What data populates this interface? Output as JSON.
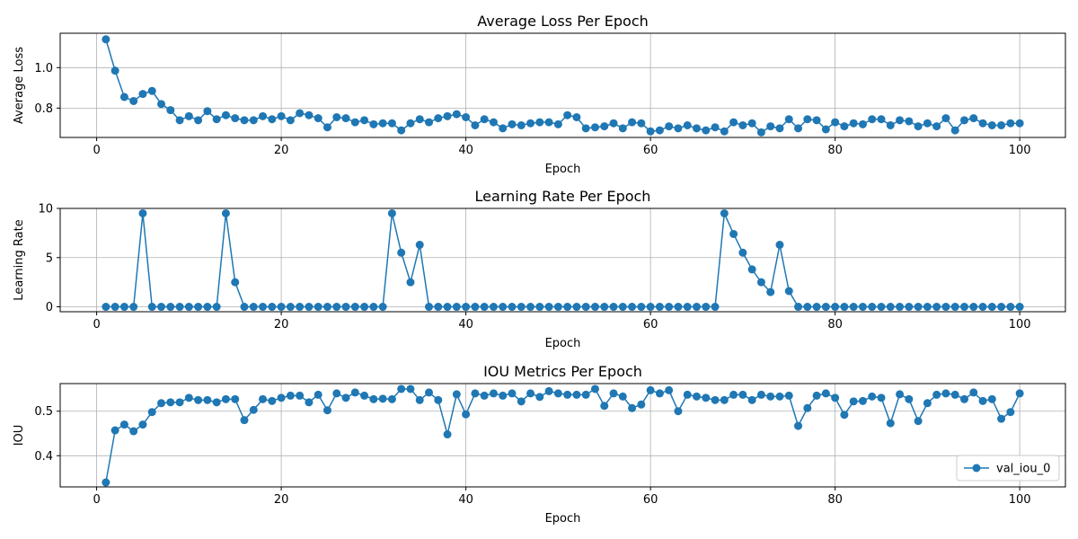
{
  "chart_data": [
    {
      "type": "line",
      "title": "Average Loss Per Epoch",
      "xlabel": "Epoch",
      "ylabel": "Average Loss",
      "xlim": [
        -3.95,
        104.95
      ],
      "ylim": [
        0.655,
        1.17
      ],
      "xticks": [
        0,
        20,
        40,
        60,
        80,
        100
      ],
      "yticks": [
        0.8,
        1.0
      ],
      "ytick_labels": [
        "0.8",
        "1.0"
      ],
      "grid": true,
      "color": "#1f77b4",
      "series": [
        {
          "x": [
            1,
            2,
            3,
            4,
            5,
            6,
            7,
            8,
            9,
            10,
            11,
            12,
            13,
            14,
            15,
            16,
            17,
            18,
            19,
            20,
            21,
            22,
            23,
            24,
            25,
            26,
            27,
            28,
            29,
            30,
            31,
            32,
            33,
            34,
            35,
            36,
            37,
            38,
            39,
            40,
            41,
            42,
            43,
            44,
            45,
            46,
            47,
            48,
            49,
            50,
            51,
            52,
            53,
            54,
            55,
            56,
            57,
            58,
            59,
            60,
            61,
            62,
            63,
            64,
            65,
            66,
            67,
            68,
            69,
            70,
            71,
            72,
            73,
            74,
            75,
            76,
            77,
            78,
            79,
            80,
            81,
            82,
            83,
            84,
            85,
            86,
            87,
            88,
            89,
            90,
            91,
            92,
            93,
            94,
            95,
            96,
            97,
            98,
            99,
            100
          ],
          "values": [
            1.14,
            0.985,
            0.855,
            0.835,
            0.87,
            0.885,
            0.82,
            0.79,
            0.74,
            0.76,
            0.74,
            0.785,
            0.745,
            0.765,
            0.75,
            0.74,
            0.74,
            0.76,
            0.745,
            0.76,
            0.74,
            0.775,
            0.765,
            0.75,
            0.705,
            0.755,
            0.75,
            0.73,
            0.74,
            0.72,
            0.725,
            0.725,
            0.69,
            0.725,
            0.745,
            0.73,
            0.75,
            0.76,
            0.77,
            0.755,
            0.715,
            0.745,
            0.73,
            0.7,
            0.72,
            0.715,
            0.725,
            0.73,
            0.73,
            0.72,
            0.765,
            0.755,
            0.7,
            0.705,
            0.71,
            0.725,
            0.7,
            0.73,
            0.725,
            0.685,
            0.69,
            0.71,
            0.7,
            0.715,
            0.7,
            0.69,
            0.705,
            0.685,
            0.73,
            0.715,
            0.725,
            0.68,
            0.71,
            0.7,
            0.745,
            0.7,
            0.745,
            0.74,
            0.695,
            0.73,
            0.71,
            0.725,
            0.72,
            0.745,
            0.745,
            0.715,
            0.74,
            0.735,
            0.71,
            0.725,
            0.71,
            0.75,
            0.69,
            0.74,
            0.75,
            0.725,
            0.715,
            0.715,
            0.725,
            0.725
          ]
        }
      ]
    },
    {
      "type": "line",
      "title": "Learning Rate Per Epoch",
      "xlabel": "Epoch",
      "ylabel": "Learning Rate",
      "xlim": [
        -3.95,
        104.95
      ],
      "ylim": [
        -0.5,
        10.0
      ],
      "xticks": [
        0,
        20,
        40,
        60,
        80,
        100
      ],
      "yticks": [
        0,
        5,
        10
      ],
      "ytick_labels": [
        "0",
        "5",
        "10"
      ],
      "grid": true,
      "color": "#1f77b4",
      "series": [
        {
          "x": [
            1,
            2,
            3,
            4,
            5,
            6,
            7,
            8,
            9,
            10,
            11,
            12,
            13,
            14,
            15,
            16,
            17,
            18,
            19,
            20,
            21,
            22,
            23,
            24,
            25,
            26,
            27,
            28,
            29,
            30,
            31,
            32,
            33,
            34,
            35,
            36,
            37,
            38,
            39,
            40,
            41,
            42,
            43,
            44,
            45,
            46,
            47,
            48,
            49,
            50,
            51,
            52,
            53,
            54,
            55,
            56,
            57,
            58,
            59,
            60,
            61,
            62,
            63,
            64,
            65,
            66,
            67,
            68,
            69,
            70,
            71,
            72,
            73,
            74,
            75,
            76,
            77,
            78,
            79,
            80,
            81,
            82,
            83,
            84,
            85,
            86,
            87,
            88,
            89,
            90,
            91,
            92,
            93,
            94,
            95,
            96,
            97,
            98,
            99,
            100
          ],
          "values": [
            0,
            0,
            0,
            0,
            9.5,
            0,
            0,
            0,
            0,
            0,
            0,
            0,
            0,
            9.5,
            2.5,
            0,
            0,
            0,
            0,
            0,
            0,
            0,
            0,
            0,
            0,
            0,
            0,
            0,
            0,
            0,
            0,
            9.5,
            5.5,
            2.5,
            6.3,
            0,
            0,
            0,
            0,
            0,
            0,
            0,
            0,
            0,
            0,
            0,
            0,
            0,
            0,
            0,
            0,
            0,
            0,
            0,
            0,
            0,
            0,
            0,
            0,
            0,
            0,
            0,
            0,
            0,
            0,
            0,
            0,
            9.5,
            7.4,
            5.5,
            3.8,
            2.5,
            1.5,
            6.3,
            1.6,
            0,
            0,
            0,
            0,
            0,
            0,
            0,
            0,
            0,
            0,
            0,
            0,
            0,
            0,
            0,
            0,
            0,
            0,
            0,
            0,
            0,
            0,
            0,
            0,
            0
          ]
        }
      ]
    },
    {
      "type": "line",
      "title": "IOU Metrics Per Epoch",
      "xlabel": "Epoch",
      "ylabel": "IOU",
      "xlim": [
        -3.95,
        104.95
      ],
      "ylim": [
        0.33,
        0.562
      ],
      "xticks": [
        0,
        20,
        40,
        60,
        80,
        100
      ],
      "yticks": [
        0.4,
        0.5
      ],
      "ytick_labels": [
        "0.4",
        "0.5"
      ],
      "grid": true,
      "color": "#1f77b4",
      "legend_position": "bottom-right",
      "series": [
        {
          "name": "val_iou_0",
          "x": [
            1,
            2,
            3,
            4,
            5,
            6,
            7,
            8,
            9,
            10,
            11,
            12,
            13,
            14,
            15,
            16,
            17,
            18,
            19,
            20,
            21,
            22,
            23,
            24,
            25,
            26,
            27,
            28,
            29,
            30,
            31,
            32,
            33,
            34,
            35,
            36,
            37,
            38,
            39,
            40,
            41,
            42,
            43,
            44,
            45,
            46,
            47,
            48,
            49,
            50,
            51,
            52,
            53,
            54,
            55,
            56,
            57,
            58,
            59,
            60,
            61,
            62,
            63,
            64,
            65,
            66,
            67,
            68,
            69,
            70,
            71,
            72,
            73,
            74,
            75,
            76,
            77,
            78,
            79,
            80,
            81,
            82,
            83,
            84,
            85,
            86,
            87,
            88,
            89,
            90,
            91,
            92,
            93,
            94,
            95,
            96,
            97,
            98,
            99,
            100
          ],
          "values": [
            0.34,
            0.457,
            0.47,
            0.455,
            0.47,
            0.498,
            0.518,
            0.52,
            0.52,
            0.53,
            0.525,
            0.525,
            0.52,
            0.527,
            0.527,
            0.48,
            0.503,
            0.527,
            0.523,
            0.53,
            0.535,
            0.535,
            0.52,
            0.537,
            0.502,
            0.54,
            0.53,
            0.542,
            0.535,
            0.527,
            0.528,
            0.527,
            0.55,
            0.55,
            0.525,
            0.542,
            0.525,
            0.448,
            0.538,
            0.493,
            0.54,
            0.535,
            0.54,
            0.535,
            0.54,
            0.522,
            0.54,
            0.532,
            0.545,
            0.54,
            0.537,
            0.537,
            0.537,
            0.55,
            0.512,
            0.54,
            0.533,
            0.507,
            0.515,
            0.547,
            0.54,
            0.547,
            0.5,
            0.537,
            0.533,
            0.53,
            0.525,
            0.525,
            0.537,
            0.537,
            0.525,
            0.537,
            0.533,
            0.533,
            0.535,
            0.467,
            0.507,
            0.535,
            0.54,
            0.53,
            0.492,
            0.522,
            0.523,
            0.533,
            0.53,
            0.473,
            0.538,
            0.527,
            0.478,
            0.518,
            0.537,
            0.54,
            0.537,
            0.527,
            0.542,
            0.523,
            0.527,
            0.483,
            0.498,
            0.54
          ]
        }
      ]
    }
  ]
}
